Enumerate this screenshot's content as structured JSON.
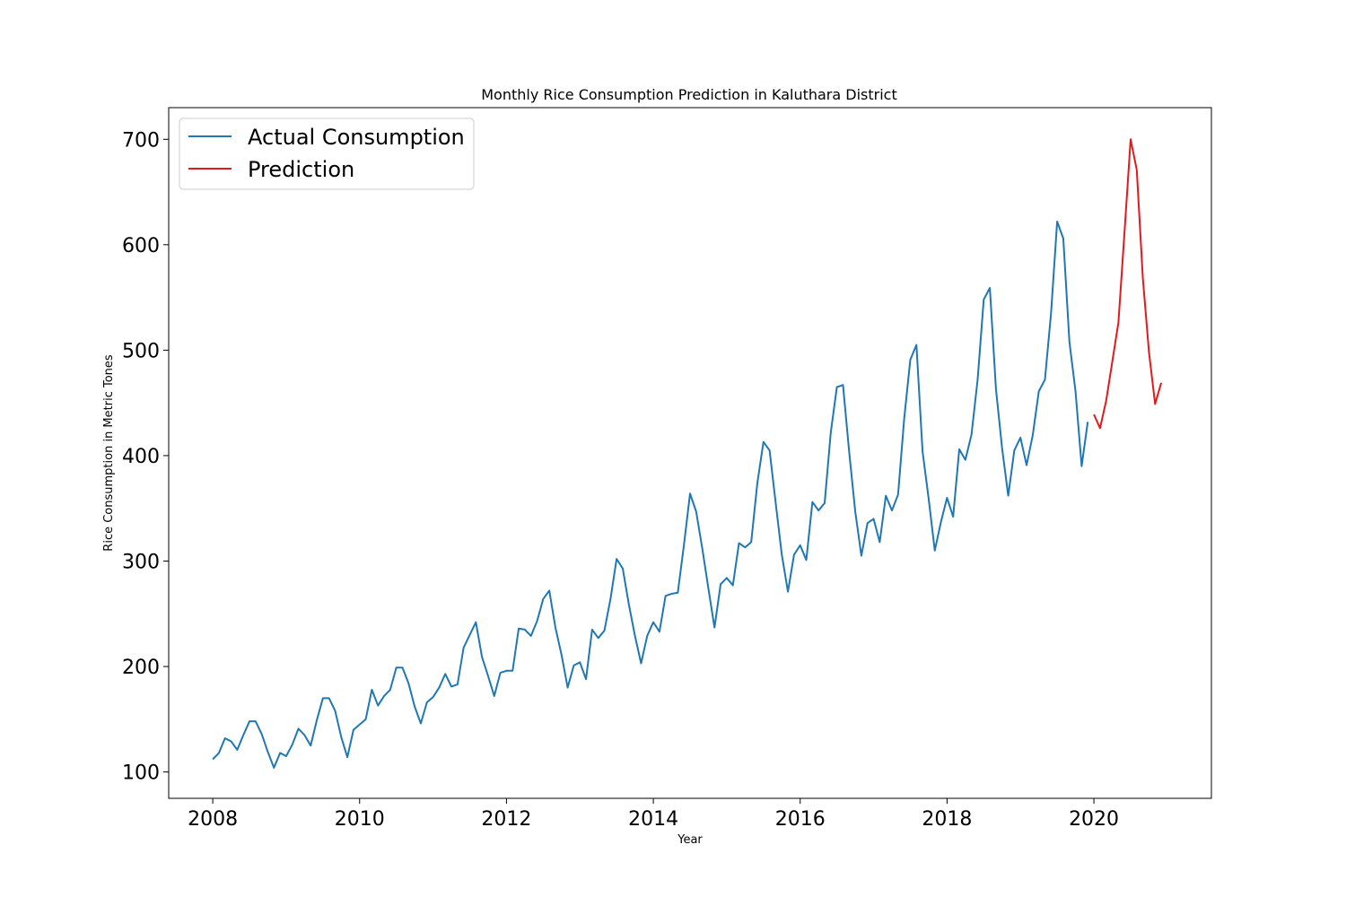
{
  "chart_data": {
    "type": "line",
    "title": "Monthly Rice Consumption Prediction in Kaluthara District",
    "xlabel": "Year",
    "ylabel": "Rice Consumption in Metric Tones",
    "xlim": [
      2007.4,
      2021.6
    ],
    "ylim": [
      75,
      730
    ],
    "x_ticks": [
      2008,
      2010,
      2012,
      2014,
      2016,
      2018,
      2020
    ],
    "y_ticks": [
      100,
      200,
      300,
      400,
      500,
      600,
      700
    ],
    "grid": false,
    "legend_position": "top-left",
    "series": [
      {
        "name": "Actual Consumption",
        "color": "#1f77b4",
        "start_year": 2008,
        "step": 0.08333,
        "values": [
          112,
          118,
          132,
          129,
          121,
          135,
          148,
          148,
          136,
          119,
          104,
          118,
          115,
          126,
          141,
          135,
          125,
          149,
          170,
          170,
          158,
          133,
          114,
          140,
          145,
          150,
          178,
          163,
          172,
          178,
          199,
          199,
          184,
          162,
          146,
          166,
          171,
          180,
          193,
          181,
          183,
          218,
          230,
          242,
          209,
          191,
          172,
          194,
          196,
          196,
          236,
          235,
          229,
          243,
          264,
          272,
          237,
          211,
          180,
          201,
          204,
          188,
          235,
          227,
          234,
          264,
          302,
          293,
          259,
          229,
          203,
          229,
          242,
          233,
          267,
          269,
          270,
          315,
          364,
          347,
          312,
          274,
          237,
          278,
          284,
          277,
          317,
          313,
          318,
          374,
          413,
          405,
          355,
          306,
          271,
          306,
          315,
          301,
          356,
          348,
          355,
          422,
          465,
          467,
          404,
          347,
          305,
          336,
          340,
          318,
          362,
          348,
          363,
          435,
          491,
          505,
          404,
          359,
          310,
          337,
          360,
          342,
          406,
          396,
          420,
          472,
          548,
          559,
          463,
          407,
          362,
          405,
          417,
          391,
          419,
          461,
          472,
          535,
          622,
          606,
          508,
          461,
          390,
          432
        ]
      },
      {
        "name": "Prediction",
        "color": "#e31a1c",
        "start_year": 2020,
        "step": 0.08333,
        "values": [
          439,
          426,
          452,
          489,
          526,
          612,
          700,
          671,
          568,
          498,
          449,
          469
        ]
      }
    ]
  }
}
